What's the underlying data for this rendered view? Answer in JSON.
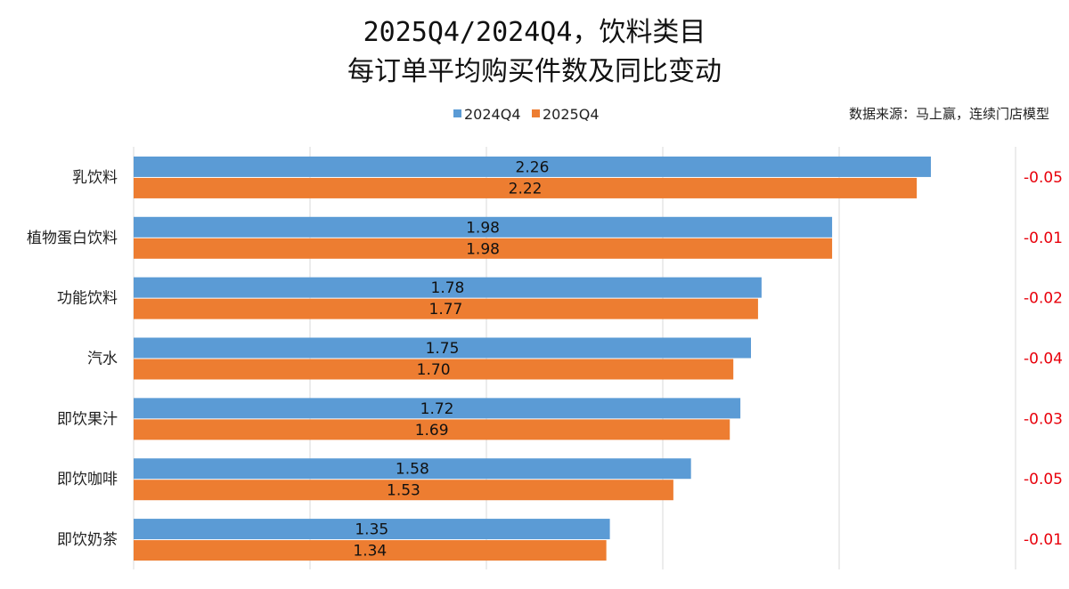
{
  "chart_data": {
    "type": "bar",
    "orientation": "horizontal",
    "title": [
      "2025Q4/2024Q4，饮料类目",
      "每订单平均购买件数及同比变动"
    ],
    "source": "数据来源：马上赢，连续门店模型",
    "categories": [
      "乳饮料",
      "植物蛋白饮料",
      "功能饮料",
      "汽水",
      "即饮果汁",
      "即饮咖啡",
      "即饮奶茶"
    ],
    "series": [
      {
        "name": "2024Q4",
        "color": "#5b9bd5",
        "values": [
          2.26,
          1.98,
          1.78,
          1.75,
          1.72,
          1.58,
          1.35
        ],
        "labels": [
          "2.26",
          "1.98",
          "1.78",
          "1.75",
          "1.72",
          "1.58",
          "1.35"
        ]
      },
      {
        "name": "2025Q4",
        "color": "#ed7d31",
        "values": [
          2.22,
          1.98,
          1.77,
          1.7,
          1.69,
          1.53,
          1.34
        ],
        "labels": [
          "2.22",
          "1.98",
          "1.77",
          "1.70",
          "1.69",
          "1.53",
          "1.34"
        ]
      }
    ],
    "change": {
      "color": "#e8000b",
      "values": [
        "-0.05",
        "-0.01",
        "-0.02",
        "-0.04",
        "-0.03",
        "-0.05",
        "-0.01"
      ]
    },
    "xlim": [
      0,
      2.5
    ],
    "grid_step": 0.5,
    "grid": true,
    "legend_position": "top-center"
  }
}
